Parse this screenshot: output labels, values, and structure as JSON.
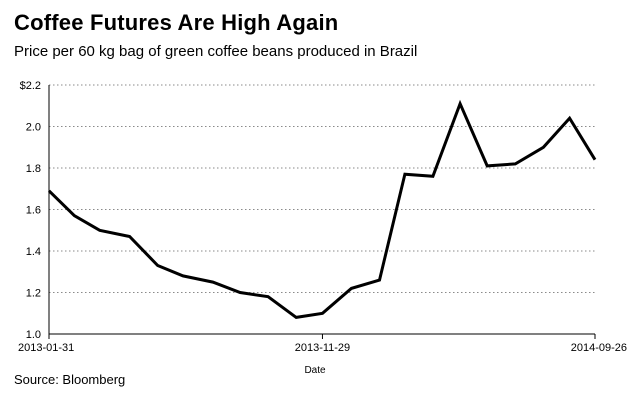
{
  "chart_data": {
    "type": "line",
    "title": "Coffee Futures Are High Again",
    "subtitle": "Price per 60 kg bag of green coffee beans produced in Brazil",
    "xlabel": "Date",
    "ylabel": "",
    "x_tick_labels": [
      "2013-01-31",
      "2013-11-29",
      "2014-09-26"
    ],
    "y_tick_labels": [
      "1.0",
      "1.2",
      "1.4",
      "1.6",
      "1.8",
      "2.0",
      "$2.2"
    ],
    "y_ticks": [
      1.0,
      1.2,
      1.4,
      1.6,
      1.8,
      2.0,
      2.2
    ],
    "ylim": [
      1.0,
      2.2
    ],
    "grid": true,
    "series": [
      {
        "x": [
          "2013-01-31",
          "2013-02-28",
          "2013-03-28",
          "2013-04-30",
          "2013-05-31",
          "2013-06-28",
          "2013-07-31",
          "2013-08-30",
          "2013-09-30",
          "2013-10-31",
          "2013-11-29",
          "2013-12-31",
          "2014-01-31",
          "2014-02-28",
          "2014-03-31",
          "2014-04-30",
          "2014-05-30",
          "2014-06-30",
          "2014-07-31",
          "2014-08-29",
          "2014-09-26"
        ],
        "values": [
          1.69,
          1.57,
          1.5,
          1.47,
          1.33,
          1.28,
          1.25,
          1.2,
          1.18,
          1.08,
          1.1,
          1.22,
          1.26,
          1.77,
          1.76,
          2.11,
          1.81,
          1.82,
          1.9,
          2.04,
          1.84
        ]
      }
    ],
    "source": "Source: Bloomberg"
  }
}
